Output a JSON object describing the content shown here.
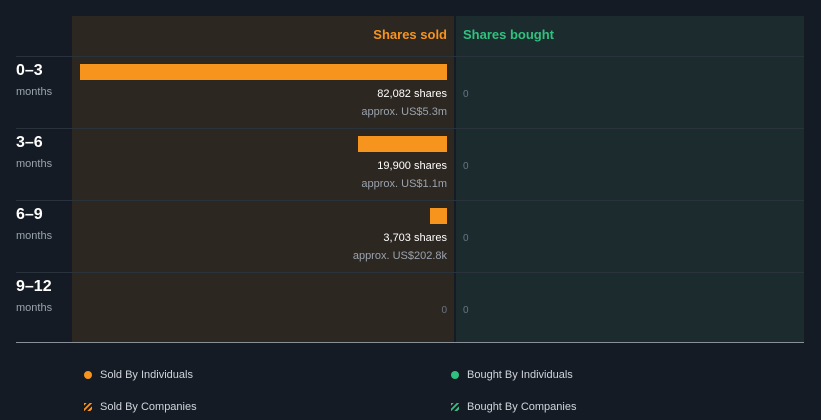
{
  "chart_data": {
    "type": "bar",
    "orientation": "horizontal",
    "column_headers": {
      "sold": "Shares sold",
      "bought": "Shares bought"
    },
    "categories": [
      {
        "period": "0–3",
        "unit": "months"
      },
      {
        "period": "3–6",
        "unit": "months"
      },
      {
        "period": "6–9",
        "unit": "months"
      },
      {
        "period": "9–12",
        "unit": "months"
      }
    ],
    "sold": [
      {
        "value": 82082,
        "shares_label": "82,082 shares",
        "approx_label": "approx. US$5.3m"
      },
      {
        "value": 19900,
        "shares_label": "19,900 shares",
        "approx_label": "approx. US$1.1m"
      },
      {
        "value": 3703,
        "shares_label": "3,703 shares",
        "approx_label": "approx. US$202.8k"
      },
      {
        "value": 0,
        "zero_label": "0"
      }
    ],
    "bought": [
      {
        "value": 0,
        "zero_label": "0"
      },
      {
        "value": 0,
        "zero_label": "0"
      },
      {
        "value": 0,
        "zero_label": "0"
      },
      {
        "value": 0,
        "zero_label": "0"
      }
    ],
    "max_value": 82082,
    "legend": [
      {
        "label": "Sold By Individuals",
        "color": "#f7941d",
        "marker": "dot"
      },
      {
        "label": "Bought By Individuals",
        "color": "#2ec27e",
        "marker": "dot"
      },
      {
        "label": "Sold By Companies",
        "color": "#f7941d",
        "marker": "hatch"
      },
      {
        "label": "Bought By Companies",
        "color": "#2ec27e",
        "marker": "hatch"
      }
    ],
    "colors": {
      "sold": "#f7941d",
      "bought": "#2ec27e"
    }
  }
}
